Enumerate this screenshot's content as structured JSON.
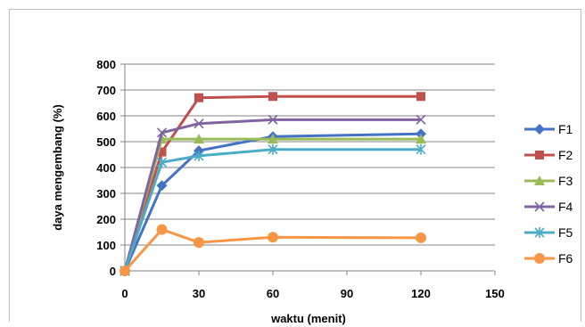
{
  "chart_data": {
    "type": "line",
    "title": "",
    "xlabel": "waktu (menit)",
    "ylabel": "daya mengembang (%)",
    "xlim": [
      0,
      150
    ],
    "ylim": [
      0,
      800
    ],
    "x_ticks": [
      "0",
      "30",
      "60",
      "90",
      "120",
      "150"
    ],
    "y_ticks": [
      "0",
      "100",
      "200",
      "300",
      "400",
      "500",
      "600",
      "700",
      "800"
    ],
    "grid": "horizontal",
    "legend_position": "right",
    "x": [
      0,
      15,
      30,
      60,
      120
    ],
    "series": [
      {
        "name": "F1",
        "color": "#4472c4",
        "marker": "diamond",
        "values": [
          0,
          330,
          465,
          520,
          530
        ]
      },
      {
        "name": "F2",
        "color": "#c0504d",
        "marker": "square",
        "values": [
          0,
          460,
          670,
          675,
          675
        ]
      },
      {
        "name": "F3",
        "color": "#9bbb59",
        "marker": "triangle",
        "values": [
          0,
          510,
          510,
          510,
          510
        ]
      },
      {
        "name": "F4",
        "color": "#8064a2",
        "marker": "x",
        "values": [
          0,
          535,
          570,
          585,
          585
        ]
      },
      {
        "name": "F5",
        "color": "#4bacc6",
        "marker": "star",
        "values": [
          0,
          420,
          445,
          470,
          470
        ]
      },
      {
        "name": "F6",
        "color": "#f79646",
        "marker": "circle",
        "values": [
          0,
          160,
          110,
          130,
          128
        ]
      }
    ]
  }
}
